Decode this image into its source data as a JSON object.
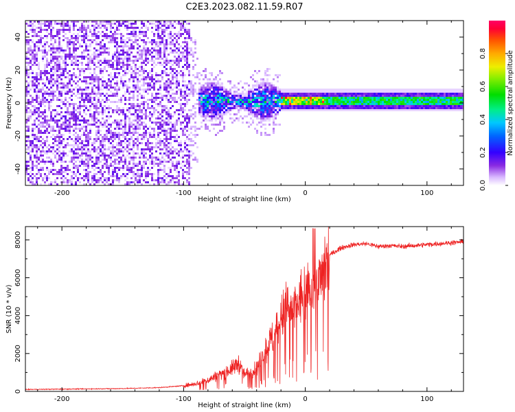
{
  "title": "C2E3.2023.082.11.59.R07",
  "chart_data": [
    {
      "type": "heatmap",
      "name": "spectrogram",
      "xlabel": "Height of straight line (km)",
      "ylabel": "Frequency (Hz)",
      "xlim": [
        -230,
        130
      ],
      "ylim": [
        -50,
        50
      ],
      "x_ticks": [
        -200,
        -100,
        0,
        100
      ],
      "x_tick_labels": [
        "-200",
        "-100",
        "0",
        "100"
      ],
      "y_ticks": [
        -40,
        -20,
        0,
        20,
        40
      ],
      "y_tick_labels": [
        "-40",
        "-20",
        "0",
        "20",
        "40"
      ],
      "regions": [
        {
          "x_from": -230,
          "x_to": -95,
          "freq_range": [
            -50,
            50
          ],
          "amplitude": "low (0.0-0.1), broadband noise"
        },
        {
          "x_from": -95,
          "x_to": -20,
          "freq_range": [
            -12,
            10
          ],
          "amplitude": "0.1-0.5, scattered"
        },
        {
          "x_from": -20,
          "x_to": 130,
          "freq_range": [
            -2,
            4
          ],
          "amplitude": "narrow line near 1-2 Hz, 0.4-1.0"
        }
      ],
      "colorbar": {
        "label": "Normalized spectral amplitude",
        "range": [
          0,
          1
        ],
        "ticks": [
          0.0,
          0.2,
          0.4,
          0.6,
          0.8
        ],
        "tick_labels": [
          "0.0",
          "0.2",
          "0.4",
          "0.6",
          "0.8"
        ]
      }
    },
    {
      "type": "line",
      "name": "snr",
      "xlabel": "Height of straight line (km)",
      "ylabel": "SNR (10 * v/v)",
      "xlim": [
        -230,
        130
      ],
      "ylim": [
        0,
        8700
      ],
      "x_ticks": [
        -200,
        -100,
        0,
        100
      ],
      "x_tick_labels": [
        "-200",
        "-100",
        "0",
        "100"
      ],
      "y_ticks": [
        0,
        2000,
        4000,
        6000,
        8000
      ],
      "y_tick_labels": [
        "0",
        "2000",
        "4000",
        "6000",
        "8000"
      ],
      "color": "#ee2222",
      "series": [
        {
          "name": "SNR",
          "x": [
            -230,
            -200,
            -150,
            -120,
            -100,
            -90,
            -80,
            -70,
            -60,
            -55,
            -50,
            -45,
            -40,
            -35,
            -30,
            -25,
            -20,
            -15,
            -10,
            -5,
            0,
            5,
            8,
            10,
            15,
            20,
            30,
            40,
            50,
            60,
            70,
            80,
            90,
            100,
            110,
            120,
            130
          ],
          "y": [
            100,
            120,
            150,
            200,
            300,
            400,
            600,
            900,
            1200,
            1500,
            900,
            1000,
            1200,
            1800,
            2500,
            3000,
            3800,
            4500,
            4200,
            4800,
            5200,
            5500,
            6000,
            5400,
            6600,
            7200,
            7600,
            7750,
            7800,
            7650,
            7700,
            7650,
            7700,
            7750,
            7800,
            7850,
            7900
          ]
        }
      ]
    }
  ]
}
